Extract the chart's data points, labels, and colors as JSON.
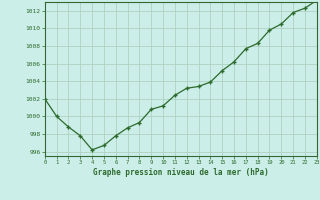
{
  "hours": [
    0,
    1,
    2,
    3,
    4,
    5,
    6,
    7,
    8,
    9,
    10,
    11,
    12,
    13,
    14,
    15,
    16,
    17,
    18,
    19,
    20,
    21,
    22,
    23
  ],
  "pressure": [
    1002,
    1000,
    998.8,
    997.8,
    996.2,
    996.7,
    997.8,
    998.7,
    999.3,
    1000.8,
    1001.2,
    1002.4,
    1003.2,
    1003.4,
    1003.9,
    1005.2,
    1006.2,
    1007.7,
    1008.3,
    1009.8,
    1010.5,
    1011.8,
    1012.3,
    1013.2
  ],
  "line_color": "#2d6a2d",
  "marker": "+",
  "bg_color": "#cceee8",
  "grid_color": "#aaccbb",
  "xlabel": "Graphe pression niveau de la mer (hPa)",
  "xlabel_color": "#2d6a2d",
  "ylabel_ticks": [
    996,
    998,
    1000,
    1002,
    1004,
    1006,
    1008,
    1010,
    1012
  ],
  "xticks": [
    0,
    1,
    2,
    3,
    4,
    5,
    6,
    7,
    8,
    9,
    10,
    11,
    12,
    13,
    14,
    15,
    16,
    17,
    18,
    19,
    20,
    21,
    22,
    23
  ],
  "xlim": [
    0,
    23
  ],
  "ylim": [
    995.5,
    1013.0
  ],
  "tick_color": "#2d6a2d",
  "axis_color": "#2d6a2d",
  "spine_color": "#336633"
}
